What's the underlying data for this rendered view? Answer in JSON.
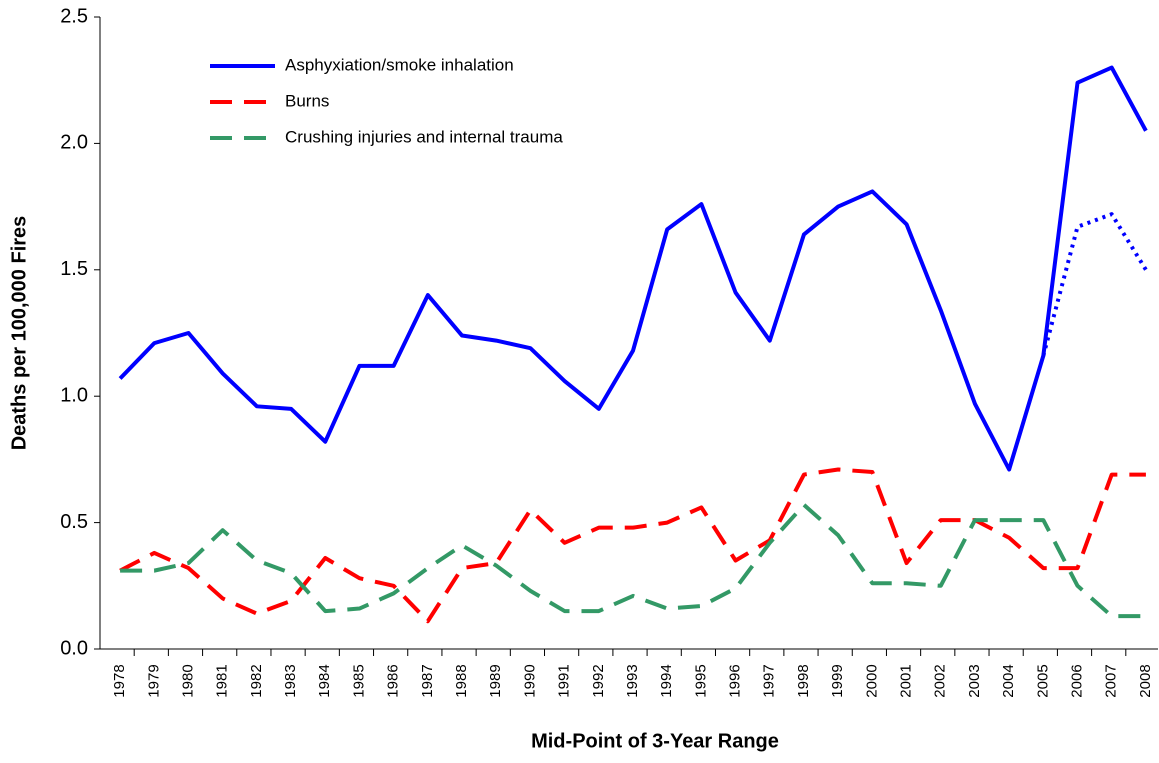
{
  "chart_data": {
    "type": "line",
    "x_label": "Mid-Point of 3-Year Range",
    "y_label": "Deaths per 100,000 Fires",
    "categories": [
      "1978",
      "1979",
      "1980",
      "1981",
      "1982",
      "1983",
      "1984",
      "1985",
      "1986",
      "1987",
      "1988",
      "1989",
      "1990",
      "1991",
      "1992",
      "1993",
      "1994",
      "1995",
      "1996",
      "1997",
      "1998",
      "1999",
      "2000",
      "2001",
      "2002",
      "2003",
      "2004",
      "2005",
      "2006",
      "2007",
      "2008"
    ],
    "series": [
      {
        "name": "Asphyxiation/smoke inhalation",
        "color": "#0000ff",
        "style": "solid",
        "values": [
          1.07,
          1.21,
          1.25,
          1.09,
          0.96,
          0.95,
          0.82,
          1.12,
          1.12,
          1.4,
          1.24,
          1.22,
          1.19,
          1.06,
          0.95,
          1.18,
          1.66,
          1.76,
          1.41,
          1.22,
          1.64,
          1.75,
          1.81,
          1.68,
          1.34,
          0.97,
          0.71,
          1.16,
          2.24,
          2.3,
          2.05
        ]
      },
      {
        "name": "Burns",
        "color": "#ff0000",
        "style": "dashed",
        "values": [
          0.31,
          0.38,
          0.32,
          0.2,
          0.14,
          0.19,
          0.36,
          0.28,
          0.25,
          0.11,
          0.32,
          0.34,
          0.55,
          0.42,
          0.48,
          0.48,
          0.5,
          0.56,
          0.35,
          0.43,
          0.69,
          0.71,
          0.7,
          0.34,
          0.51,
          0.51,
          0.44,
          0.32,
          0.32,
          0.69,
          0.69
        ]
      },
      {
        "name": "Crushing injuries and internal trauma",
        "color": "#339966",
        "style": "dashed",
        "values": [
          0.31,
          0.31,
          0.34,
          0.47,
          0.35,
          0.3,
          0.15,
          0.16,
          0.22,
          0.32,
          0.41,
          0.33,
          0.23,
          0.15,
          0.15,
          0.21,
          0.16,
          0.17,
          0.24,
          0.42,
          0.57,
          0.45,
          0.26,
          0.26,
          0.25,
          0.51,
          0.51,
          0.51,
          0.25,
          0.13,
          0.13
        ]
      },
      {
        "color": "#0000ff",
        "style": "dotted",
        "values": [
          null,
          null,
          null,
          null,
          null,
          null,
          null,
          null,
          null,
          null,
          null,
          null,
          null,
          null,
          null,
          null,
          null,
          null,
          null,
          null,
          null,
          null,
          null,
          null,
          null,
          null,
          null,
          1.16,
          1.67,
          1.72,
          1.5
        ]
      }
    ],
    "ylim": [
      0,
      2.5
    ],
    "yticks": [
      {
        "value": 0,
        "label": "0.0"
      },
      0.5,
      {
        "value": 1,
        "label": "1.0"
      },
      1.5,
      {
        "value": 2,
        "label": "2.0"
      },
      2.5
    ],
    "legend": "upper-left"
  }
}
